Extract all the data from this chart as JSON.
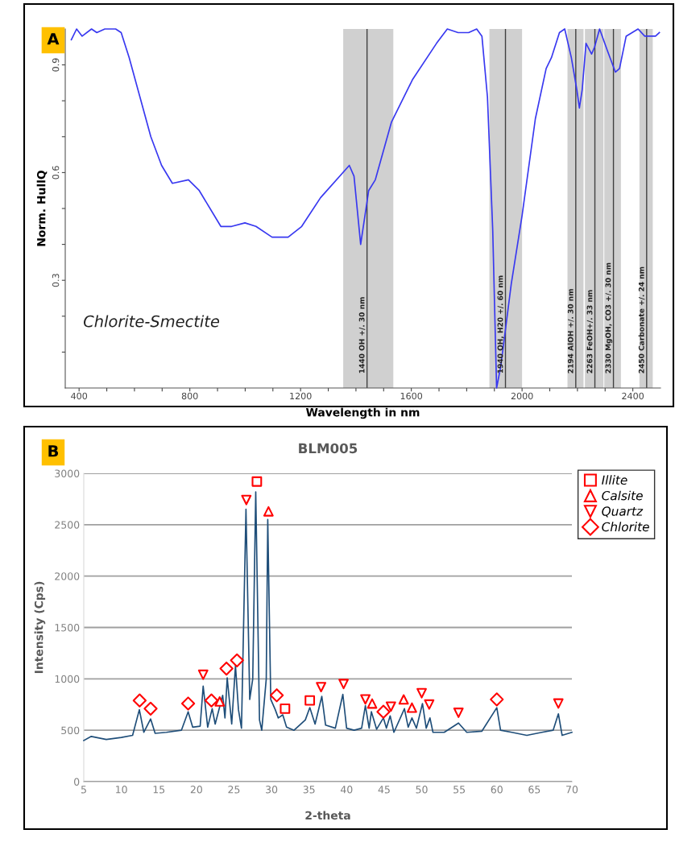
{
  "chart_data": [
    {
      "type": "line",
      "xlabel": "Wavelength in nm",
      "ylabel": "Norm. HullQ",
      "annotations": [
        "A",
        "Chlorite-Smectite"
      ],
      "x": [
        372,
        391,
        411,
        445,
        464,
        493,
        532,
        552,
        581,
        620,
        659,
        698,
        737,
        795,
        834,
        912,
        951,
        999,
        1039,
        1097,
        1155,
        1204,
        1272,
        1376,
        1393,
        1417,
        1446,
        1470,
        1528,
        1605,
        1691,
        1730,
        1769,
        1807,
        1836,
        1855,
        1875,
        1894,
        1908,
        1923,
        1961,
        2000,
        2048,
        2087,
        2106,
        2135,
        2154,
        2178,
        2198,
        2207,
        2217,
        2231,
        2251,
        2262,
        2280,
        2308,
        2337,
        2352,
        2376,
        2419,
        2443,
        2463,
        2482,
        2496
      ],
      "series": [
        {
          "color": "#3838f0",
          "values": [
            0.97,
            1.0,
            0.98,
            1.0,
            0.99,
            1.0,
            1.0,
            0.99,
            0.92,
            0.81,
            0.7,
            0.62,
            0.57,
            0.58,
            0.55,
            0.45,
            0.45,
            0.46,
            0.45,
            0.42,
            0.42,
            0.45,
            0.53,
            0.62,
            0.59,
            0.4,
            0.55,
            0.58,
            0.74,
            0.86,
            0.96,
            1.0,
            0.99,
            0.99,
            1.0,
            0.98,
            0.81,
            0.44,
            0.0,
            0.06,
            0.29,
            0.48,
            0.75,
            0.89,
            0.92,
            0.99,
            1.0,
            0.92,
            0.83,
            0.78,
            0.83,
            0.96,
            0.93,
            0.95,
            1.0,
            0.94,
            0.88,
            0.89,
            0.98,
            1.0,
            0.98,
            0.98,
            0.98,
            0.99
          ]
        }
      ],
      "xlim": [
        350,
        2500
      ],
      "ylim": [
        0,
        1
      ],
      "xticks": [
        400,
        {
          "value": 500,
          "label": null
        },
        {
          "value": 600,
          "label": null
        },
        {
          "value": 700,
          "label": null
        },
        800,
        {
          "value": 900,
          "label": null
        },
        {
          "value": 1000,
          "label": null
        },
        {
          "value": 1100,
          "label": null
        },
        1200,
        {
          "value": 1300,
          "label": null
        },
        {
          "value": 1400,
          "label": null
        },
        {
          "value": 1500,
          "label": null
        },
        1600,
        {
          "value": 1700,
          "label": null
        },
        {
          "value": 1800,
          "label": null
        },
        {
          "value": 1900,
          "label": null
        },
        2000,
        {
          "value": 2100,
          "label": null
        },
        {
          "value": 2200,
          "label": null
        },
        {
          "value": 2300,
          "label": null
        },
        2400
      ],
      "yticks": [
        {
          "value": 0.1,
          "label": null
        },
        {
          "value": 0.2,
          "label": null
        },
        0.3,
        {
          "value": 0.4,
          "label": null
        },
        {
          "value": 0.5,
          "label": null
        },
        0.6,
        {
          "value": 0.7,
          "label": null
        },
        {
          "value": 0.8,
          "label": null
        },
        0.9
      ],
      "bands": [
        {
          "axis": "x",
          "from": 1354,
          "to": 1535,
          "color": "#d0d0d0"
        },
        {
          "axis": "x",
          "from": 1882,
          "to": 2000,
          "color": "#d0d0d0"
        },
        {
          "axis": "x",
          "from": 2164,
          "to": 2222,
          "color": "#d0d0d0"
        },
        {
          "axis": "x",
          "from": 2227,
          "to": 2294,
          "color": "#d0d0d0"
        },
        {
          "axis": "x",
          "from": 2297,
          "to": 2357,
          "color": "#d0d0d0"
        },
        {
          "axis": "x",
          "from": 2424,
          "to": 2472,
          "color": "#d0d0d0"
        }
      ],
      "ref_lines": [
        {
          "axis": "x",
          "value": 1440,
          "label": "1440 OH +/. 30 nm",
          "color": "#404040"
        },
        {
          "axis": "x",
          "value": 1940,
          "label": "1940 OH, H20 +/. 60 nm",
          "color": "#404040"
        },
        {
          "axis": "x",
          "value": 2194,
          "label": "2194 AlOH +/. 30 nm",
          "color": "#404040"
        },
        {
          "axis": "x",
          "value": 2263,
          "label": "2263 FeOH+/. 33 nm",
          "color": "#404040"
        },
        {
          "axis": "x",
          "value": 2330,
          "label": "2330 MgOH, CO3 +/. 30 nm",
          "color": "#404040"
        },
        {
          "axis": "x",
          "value": 2450,
          "label": "2450 Carbonate +/. 24 nm",
          "color": "#404040"
        }
      ],
      "grid": false
    },
    {
      "type": "line",
      "title": "BLM005",
      "xlabel": "2-theta",
      "ylabel": "Intensity (Cps)",
      "annotations": [
        "B"
      ],
      "series": [
        {
          "type": "line",
          "color": "#1f4e79",
          "x": [
            5,
            6,
            8,
            10,
            11.5,
            12.4,
            13,
            13.9,
            14.5,
            16,
            18,
            18.9,
            19.5,
            20.5,
            20.9,
            21.5,
            22.1,
            22.5,
            23.5,
            23.8,
            24.1,
            24.7,
            25.2,
            25.6,
            26.0,
            26.6,
            27.1,
            27.5,
            27.9,
            28.4,
            28.7,
            29.3,
            29.5,
            29.9,
            30.5,
            30.9,
            31.5,
            32.0,
            33,
            34.5,
            35.1,
            35.8,
            36.7,
            37.2,
            38.5,
            39.5,
            40,
            41,
            42,
            42.5,
            43,
            43.3,
            44,
            44.9,
            45.3,
            45.8,
            46.3,
            47.7,
            48.2,
            48.7,
            49.3,
            50.1,
            50.6,
            51.1,
            51.5,
            53,
            54.9,
            56,
            58,
            60,
            60.5,
            62,
            64,
            66,
            67.5,
            68.2,
            68.7,
            70
          ],
          "values": [
            400,
            440,
            410,
            430,
            450,
            700,
            480,
            610,
            470,
            480,
            500,
            680,
            530,
            540,
            930,
            530,
            710,
            560,
            840,
            620,
            1010,
            560,
            1130,
            700,
            520,
            2650,
            800,
            1000,
            2820,
            600,
            500,
            1000,
            2550,
            800,
            700,
            620,
            650,
            530,
            500,
            600,
            720,
            560,
            830,
            550,
            520,
            850,
            520,
            500,
            520,
            740,
            520,
            680,
            510,
            620,
            520,
            640,
            480,
            710,
            530,
            620,
            520,
            760,
            520,
            620,
            480,
            480,
            570,
            480,
            490,
            720,
            500,
            480,
            450,
            480,
            500,
            660,
            450,
            480
          ]
        },
        {
          "type": "scatter",
          "name": "Illite",
          "marker": "square",
          "color": "#ff0000",
          "x": [
            28.05,
            31.8,
            35.1
          ],
          "values": [
            2920,
            710,
            790
          ]
        },
        {
          "type": "scatter",
          "name": "Calsite",
          "marker": "triangle",
          "color": "#ff0000",
          "x": [
            23.1,
            29.6,
            43.4,
            47.6,
            48.7
          ],
          "values": [
            780,
            2630,
            760,
            800,
            720
          ]
        },
        {
          "type": "scatter",
          "name": "Quartz",
          "marker": "triangle_down",
          "color": "#ff0000",
          "x": [
            20.9,
            26.65,
            36.6,
            39.6,
            42.5,
            45.9,
            50.0,
            51.0,
            54.9,
            68.2
          ],
          "values": [
            1040,
            2740,
            920,
            950,
            800,
            730,
            860,
            750,
            670,
            760
          ]
        },
        {
          "type": "scatter",
          "name": "Chlorite",
          "marker": "diamond",
          "color": "#ff0000",
          "x": [
            12.44,
            13.9,
            18.9,
            22.0,
            24.0,
            25.4,
            30.7,
            44.9,
            60.0
          ],
          "values": [
            790,
            710,
            760,
            790,
            1100,
            1180,
            840,
            680,
            800
          ]
        }
      ],
      "xlim": [
        5,
        70
      ],
      "ylim": [
        0,
        3000
      ],
      "xticks": [
        5,
        10,
        15,
        20,
        25,
        30,
        35,
        40,
        45,
        50,
        55,
        60,
        65,
        70
      ],
      "yticks": [
        0,
        500,
        1000,
        1500,
        2000,
        2500,
        3000
      ],
      "grid": "y",
      "legend": "top right"
    }
  ]
}
